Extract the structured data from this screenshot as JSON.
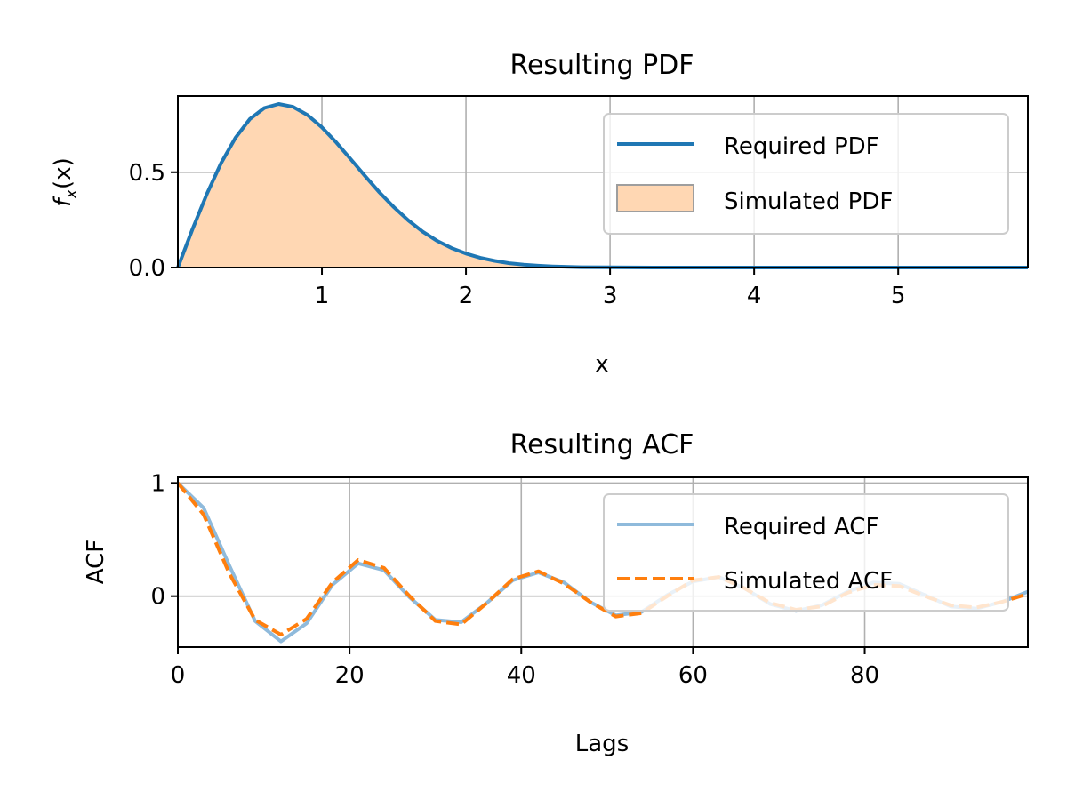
{
  "chart_data": [
    {
      "type": "line",
      "title": "Resulting PDF",
      "xlabel": "x",
      "ylabel_main": "f",
      "ylabel_sub": "x",
      "ylabel_arg": "(x)",
      "xlim": [
        0,
        5.9
      ],
      "ylim": [
        0,
        0.9
      ],
      "xticks": [
        1,
        2,
        3,
        4,
        5
      ],
      "xtick_labels": [
        "1",
        "2",
        "3",
        "4",
        "5"
      ],
      "yticks": [
        0,
        0.5
      ],
      "ytick_labels": [
        "0.0",
        "0.5"
      ],
      "grid": true,
      "legend_position": "top-right",
      "series": [
        {
          "name": "Required PDF",
          "style": "solid",
          "color": "#1f77b4",
          "x": [
            0.0,
            0.1,
            0.2,
            0.3,
            0.4,
            0.5,
            0.6,
            0.7,
            0.8,
            0.9,
            1.0,
            1.1,
            1.2,
            1.3,
            1.4,
            1.5,
            1.6,
            1.7,
            1.8,
            1.9,
            2.0,
            2.1,
            2.2,
            2.3,
            2.4,
            2.5,
            2.6,
            2.8,
            3.0,
            3.3,
            3.6,
            4.0,
            4.5,
            5.0,
            5.5,
            5.9
          ],
          "y": [
            0.0,
            0.198,
            0.384,
            0.548,
            0.681,
            0.779,
            0.837,
            0.858,
            0.843,
            0.8,
            0.736,
            0.656,
            0.569,
            0.48,
            0.394,
            0.316,
            0.247,
            0.188,
            0.14,
            0.102,
            0.073,
            0.051,
            0.035,
            0.023,
            0.015,
            0.01,
            0.006,
            0.002,
            0.001,
            0.0,
            0.0,
            0.0,
            0.0,
            0.0,
            0.0,
            0.0
          ]
        },
        {
          "name": "Simulated PDF",
          "style": "filled-histogram",
          "color": "#ffd7b3",
          "edge_color": "#9e9e9e",
          "x": [
            0.0,
            0.1,
            0.2,
            0.3,
            0.4,
            0.5,
            0.6,
            0.7,
            0.8,
            0.9,
            1.0,
            1.1,
            1.2,
            1.3,
            1.4,
            1.5,
            1.6,
            1.7,
            1.8,
            1.9,
            2.0,
            2.1,
            2.2,
            2.3,
            2.4,
            2.5,
            2.6,
            2.8,
            3.0
          ],
          "y": [
            0.0,
            0.198,
            0.384,
            0.548,
            0.681,
            0.779,
            0.837,
            0.858,
            0.843,
            0.8,
            0.736,
            0.656,
            0.569,
            0.48,
            0.394,
            0.316,
            0.247,
            0.188,
            0.14,
            0.102,
            0.073,
            0.051,
            0.035,
            0.023,
            0.015,
            0.01,
            0.006,
            0.002,
            0.0
          ]
        }
      ]
    },
    {
      "type": "line",
      "title": "Resulting ACF",
      "xlabel": "Lags",
      "ylabel": "ACF",
      "xlim": [
        0,
        99
      ],
      "ylim": [
        -0.45,
        1.05
      ],
      "xticks": [
        0,
        20,
        40,
        60,
        80
      ],
      "xtick_labels": [
        "0",
        "20",
        "40",
        "60",
        "80"
      ],
      "yticks": [
        0,
        1
      ],
      "ytick_labels": [
        "0",
        "1"
      ],
      "grid": true,
      "legend_position": "top-right",
      "series": [
        {
          "name": "Required ACF",
          "style": "solid",
          "color": "#8fbadb",
          "x": [
            0,
            3,
            6,
            9,
            12,
            15,
            18,
            21,
            24,
            27,
            30,
            33,
            36,
            39,
            42,
            45,
            48,
            51,
            54,
            57,
            60,
            63,
            66,
            69,
            72,
            75,
            78,
            81,
            84,
            87,
            90,
            93,
            96,
            99
          ],
          "y": [
            1.0,
            0.78,
            0.27,
            -0.22,
            -0.4,
            -0.24,
            0.1,
            0.29,
            0.23,
            -0.01,
            -0.21,
            -0.23,
            -0.06,
            0.14,
            0.21,
            0.12,
            -0.05,
            -0.17,
            -0.14,
            0.01,
            0.13,
            0.17,
            0.07,
            -0.07,
            -0.13,
            -0.08,
            0.04,
            0.12,
            0.11,
            0.01,
            -0.09,
            -0.11,
            -0.05,
            0.04
          ]
        },
        {
          "name": "Simulated ACF",
          "style": "dashed",
          "color": "#ff7f0e",
          "x": [
            0,
            3,
            6,
            9,
            12,
            15,
            18,
            21,
            24,
            27,
            30,
            33,
            36,
            39,
            42,
            45,
            48,
            51,
            54,
            57,
            60,
            63,
            66,
            69,
            72,
            75,
            78,
            81,
            84,
            87,
            90,
            93,
            96,
            99
          ],
          "y": [
            1.0,
            0.72,
            0.2,
            -0.21,
            -0.34,
            -0.2,
            0.12,
            0.32,
            0.25,
            0.0,
            -0.22,
            -0.25,
            -0.06,
            0.15,
            0.22,
            0.11,
            -0.05,
            -0.18,
            -0.15,
            0.0,
            0.14,
            0.17,
            0.07,
            -0.06,
            -0.12,
            -0.09,
            0.03,
            0.1,
            0.09,
            0.0,
            -0.08,
            -0.1,
            -0.05,
            0.02
          ]
        }
      ]
    }
  ]
}
